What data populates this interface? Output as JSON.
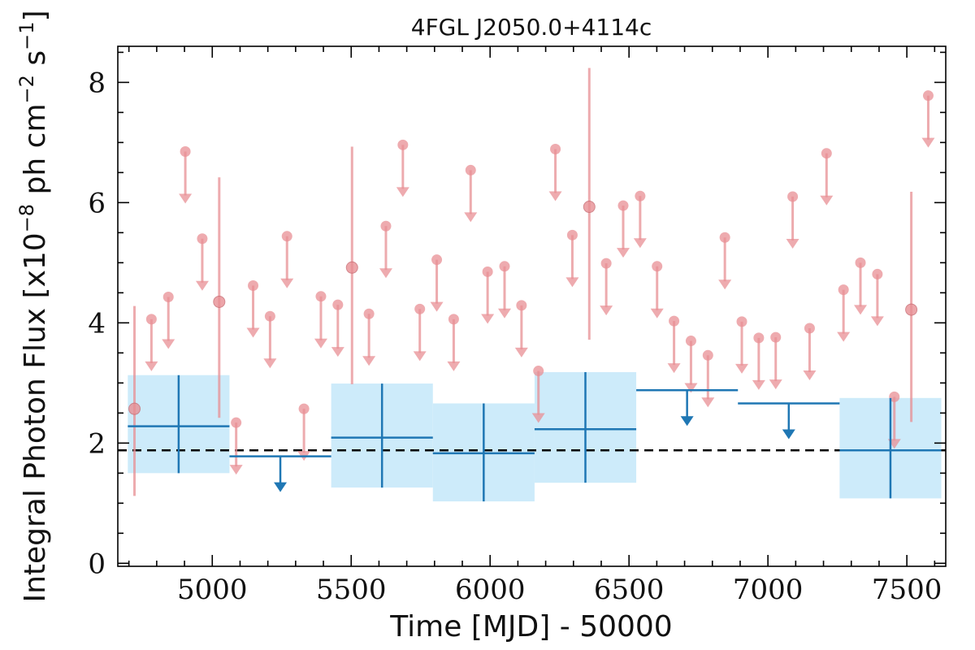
{
  "chart_data": {
    "type": "scatter",
    "title": "4FGL J2050.0+4114c",
    "xlabel": "Time [MJD] - 50000",
    "ylabel_parts": {
      "main": "Integral Photon Flux [x10",
      "exp1": "−8",
      "mid": " ph cm",
      "exp2": "−2",
      "mid2": " s",
      "exp3": "−1",
      "end": "]"
    },
    "xlim": [
      4660,
      7640
    ],
    "ylim": [
      -0.05,
      8.6
    ],
    "x_ticks": [
      5000,
      5500,
      6000,
      6500,
      7000,
      7500
    ],
    "y_ticks": [
      0,
      2,
      4,
      6,
      8
    ],
    "reference_line": {
      "y": 1.88,
      "style": "dashed",
      "color": "#000000"
    },
    "colors": {
      "short_bins": "#e88f94",
      "long_bins": "#1f77b4",
      "long_band": "#cdebfa"
    },
    "series": [
      {
        "points": [
          {
            "x": 4720,
            "y": 2.57,
            "lo": 1.12,
            "hi": 4.28,
            "ul": false
          },
          {
            "x": 4781,
            "y": 4.06,
            "ul": true
          },
          {
            "x": 4842,
            "y": 4.43,
            "ul": true
          },
          {
            "x": 4903,
            "y": 6.85,
            "ul": true
          },
          {
            "x": 4964,
            "y": 5.4,
            "ul": true
          },
          {
            "x": 5025,
            "y": 4.35,
            "lo": 2.42,
            "hi": 6.42,
            "ul": false
          },
          {
            "x": 5086,
            "y": 2.34,
            "ul": true
          },
          {
            "x": 5147,
            "y": 4.62,
            "ul": true
          },
          {
            "x": 5208,
            "y": 4.11,
            "ul": true
          },
          {
            "x": 5269,
            "y": 5.44,
            "ul": true
          },
          {
            "x": 5330,
            "y": 2.57,
            "ul": true
          },
          {
            "x": 5391,
            "y": 4.44,
            "ul": true
          },
          {
            "x": 5452,
            "y": 4.3,
            "ul": true
          },
          {
            "x": 5503,
            "y": 4.92,
            "lo": 2.98,
            "hi": 6.93,
            "ul": false
          },
          {
            "x": 5564,
            "y": 4.15,
            "ul": true
          },
          {
            "x": 5625,
            "y": 5.61,
            "ul": true
          },
          {
            "x": 5686,
            "y": 6.96,
            "ul": true
          },
          {
            "x": 5747,
            "y": 4.23,
            "ul": true
          },
          {
            "x": 5808,
            "y": 5.05,
            "ul": true
          },
          {
            "x": 5869,
            "y": 4.06,
            "ul": true
          },
          {
            "x": 5930,
            "y": 6.54,
            "ul": true
          },
          {
            "x": 5991,
            "y": 4.85,
            "ul": true
          },
          {
            "x": 6052,
            "y": 4.94,
            "ul": true
          },
          {
            "x": 6113,
            "y": 4.29,
            "ul": true
          },
          {
            "x": 6174,
            "y": 3.2,
            "ul": true
          },
          {
            "x": 6235,
            "y": 6.89,
            "ul": true
          },
          {
            "x": 6296,
            "y": 5.46,
            "ul": true
          },
          {
            "x": 6357,
            "y": 5.93,
            "lo": 3.72,
            "hi": 8.24,
            "ul": false
          },
          {
            "x": 6418,
            "y": 4.99,
            "ul": true
          },
          {
            "x": 6479,
            "y": 5.95,
            "ul": true
          },
          {
            "x": 6540,
            "y": 6.11,
            "ul": true
          },
          {
            "x": 6601,
            "y": 4.94,
            "ul": true
          },
          {
            "x": 6662,
            "y": 4.03,
            "ul": true
          },
          {
            "x": 6723,
            "y": 3.7,
            "ul": true
          },
          {
            "x": 6784,
            "y": 3.46,
            "ul": true
          },
          {
            "x": 6845,
            "y": 5.42,
            "ul": true
          },
          {
            "x": 6906,
            "y": 4.02,
            "ul": true
          },
          {
            "x": 6967,
            "y": 3.75,
            "ul": true
          },
          {
            "x": 7028,
            "y": 3.76,
            "ul": true
          },
          {
            "x": 7089,
            "y": 6.1,
            "ul": true
          },
          {
            "x": 7150,
            "y": 3.91,
            "ul": true
          },
          {
            "x": 7211,
            "y": 6.82,
            "ul": true
          },
          {
            "x": 7272,
            "y": 4.55,
            "ul": true
          },
          {
            "x": 7333,
            "y": 5.0,
            "ul": true
          },
          {
            "x": 7394,
            "y": 4.81,
            "ul": true
          },
          {
            "x": 7455,
            "y": 2.77,
            "ul": true
          },
          {
            "x": 7516,
            "y": 4.22,
            "lo": 2.35,
            "hi": 6.18,
            "ul": false
          },
          {
            "x": 7577,
            "y": 7.78,
            "ul": true
          }
        ]
      },
      {
        "points": [
          {
            "x": 4879,
            "x_lo": 4696,
            "x_hi": 5062,
            "y": 2.28,
            "lo": 1.5,
            "hi": 3.13,
            "ul": false
          },
          {
            "x": 5245,
            "x_lo": 5062,
            "x_hi": 5428,
            "y": 1.78,
            "ul": true
          },
          {
            "x": 5611,
            "x_lo": 5428,
            "x_hi": 5794,
            "y": 2.09,
            "lo": 1.26,
            "hi": 2.99,
            "ul": false
          },
          {
            "x": 5977,
            "x_lo": 5794,
            "x_hi": 6160,
            "y": 1.83,
            "lo": 1.03,
            "hi": 2.66,
            "ul": false
          },
          {
            "x": 6343,
            "x_lo": 6160,
            "x_hi": 6526,
            "y": 2.23,
            "lo": 1.34,
            "hi": 3.18,
            "ul": false
          },
          {
            "x": 6709,
            "x_lo": 6526,
            "x_hi": 6892,
            "y": 2.88,
            "ul": true
          },
          {
            "x": 7075,
            "x_lo": 6892,
            "x_hi": 7258,
            "y": 2.66,
            "ul": true
          },
          {
            "x": 7441,
            "x_lo": 7258,
            "x_hi": 7624,
            "y": 1.88,
            "lo": 1.08,
            "hi": 2.75,
            "ul": false
          }
        ]
      }
    ]
  }
}
